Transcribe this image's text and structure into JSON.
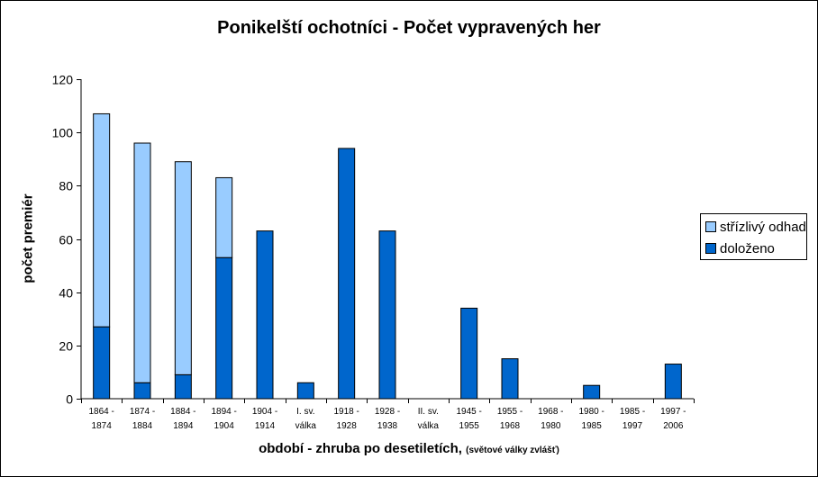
{
  "chart_data": {
    "type": "bar",
    "stacked": true,
    "title": "Ponikelští ochotníci - Počet vypravených her",
    "ylabel": "počet premiér",
    "xlabel": "období - zhruba po desetiletích,",
    "xlabel_note": "(světové války zvlášť)",
    "ylim": [
      0,
      120
    ],
    "yticks": [
      0,
      20,
      40,
      60,
      80,
      100,
      120
    ],
    "categories": [
      [
        "1864 -",
        "1874"
      ],
      [
        "1874 -",
        "1884"
      ],
      [
        "1884 -",
        "1894"
      ],
      [
        "1894 -",
        "1904"
      ],
      [
        "1904 -",
        "1914"
      ],
      [
        "I. sv.",
        "válka"
      ],
      [
        "1918 -",
        "1928"
      ],
      [
        "1928 -",
        "1938"
      ],
      [
        "II. sv.",
        "válka"
      ],
      [
        "1945 -",
        "1955"
      ],
      [
        "1955 -",
        "1968"
      ],
      [
        "1968 -",
        "1980"
      ],
      [
        "1980 -",
        "1985"
      ],
      [
        "1985 -",
        "1997"
      ],
      [
        "1997 -",
        "2006"
      ]
    ],
    "series": [
      {
        "name": "doloženo",
        "color": "#0066CC",
        "values": [
          27,
          6,
          9,
          53,
          63,
          6,
          94,
          63,
          0,
          34,
          15,
          0,
          5,
          0,
          13
        ]
      },
      {
        "name": "střízlivý odhad",
        "color": "#99CCFF",
        "values": [
          80,
          90,
          80,
          30,
          0,
          0,
          0,
          0,
          0,
          0,
          0,
          0,
          0,
          0,
          0
        ]
      }
    ],
    "legend": {
      "position": "right",
      "order": [
        "střízlivý odhad",
        "doloženo"
      ]
    },
    "grid": false
  }
}
